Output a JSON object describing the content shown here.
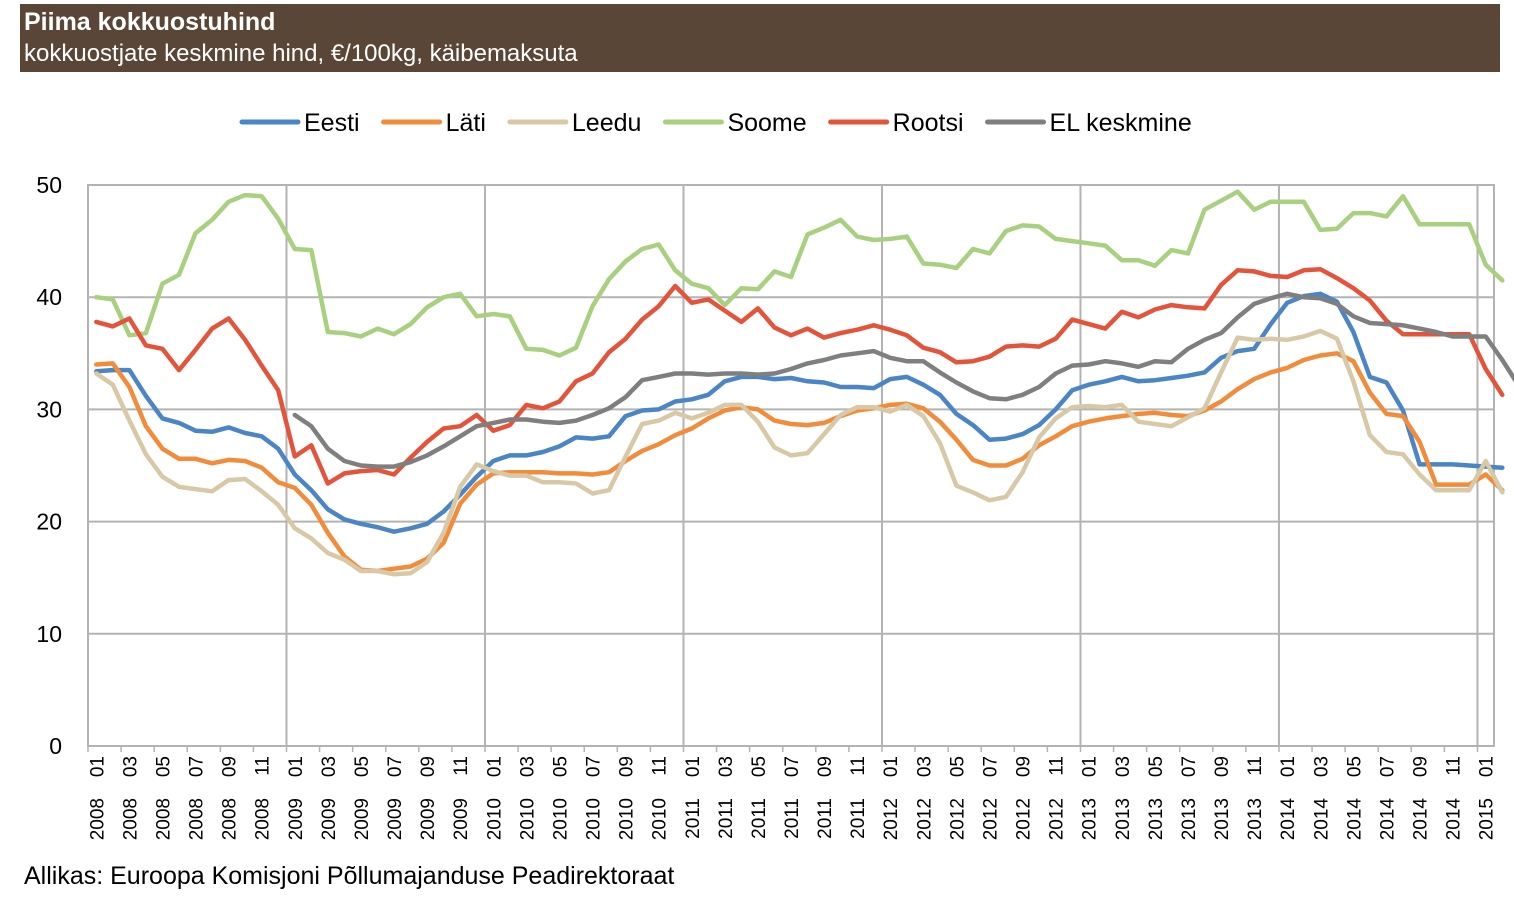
{
  "chart_data": {
    "type": "line",
    "title": "Piima kokkuostuhind",
    "subtitle": "kokkuostjate keskmine hind, €/100kg, käibemaksuta",
    "source": "Allikas: Euroopa Komisjoni Põllumajanduse Peadirektoraat",
    "ylim": [
      0,
      50
    ],
    "yticks": [
      "0",
      "10",
      "20",
      "30",
      "40",
      "50"
    ],
    "grid": true,
    "legend_position": "top",
    "x_month_labels": [
      "01",
      "03",
      "05",
      "07",
      "09",
      "11",
      "01",
      "03",
      "05",
      "07",
      "09",
      "11",
      "01",
      "03",
      "05",
      "07",
      "09",
      "11",
      "01",
      "03",
      "05",
      "07",
      "09",
      "11",
      "01",
      "03",
      "05",
      "07",
      "09",
      "11",
      "01",
      "03",
      "05",
      "07",
      "09",
      "11",
      "01",
      "03",
      "05",
      "07",
      "09",
      "11",
      "01"
    ],
    "x_year_labels": [
      "2008",
      "2008",
      "2008",
      "2008",
      "2008",
      "2008",
      "2009",
      "2009",
      "2009",
      "2009",
      "2009",
      "2009",
      "2010",
      "2010",
      "2010",
      "2010",
      "2010",
      "2010",
      "2011",
      "2011",
      "2011",
      "2011",
      "2011",
      "2011",
      "2012",
      "2012",
      "2012",
      "2012",
      "2012",
      "2012",
      "2013",
      "2013",
      "2013",
      "2013",
      "2013",
      "2013",
      "2014",
      "2014",
      "2014",
      "2014",
      "2014",
      "2014",
      "2015"
    ],
    "x_start": "2008-01",
    "x_end": "2015-01",
    "series": [
      {
        "name": "Eesti",
        "color": "#4a86c5",
        "start": "2008-01",
        "values": [
          33.4,
          33.5,
          33.5,
          31.2,
          29.2,
          28.8,
          28.1,
          28.0,
          28.4,
          27.9,
          27.6,
          26.5,
          24.2,
          22.8,
          21.1,
          20.2,
          19.8,
          19.5,
          19.1,
          19.4,
          19.8,
          20.9,
          22.4,
          24.0,
          25.4,
          25.9,
          25.9,
          26.2,
          26.7,
          27.5,
          27.4,
          27.6,
          29.4,
          29.9,
          30.0,
          30.7,
          30.9,
          31.3,
          32.5,
          32.9,
          32.9,
          32.7,
          32.8,
          32.5,
          32.4,
          32.0,
          32.0,
          31.9,
          32.7,
          32.9,
          32.2,
          31.3,
          29.6,
          28.6,
          27.3,
          27.4,
          27.8,
          28.6,
          30.0,
          31.7,
          32.2,
          32.5,
          32.9,
          32.5,
          32.6,
          32.8,
          33.0,
          33.3,
          34.6,
          35.2,
          35.4,
          37.6,
          39.5,
          40.1,
          40.3,
          39.6,
          36.9,
          32.9,
          32.4,
          29.9,
          25.1,
          25.1,
          25.1,
          25.0,
          24.9,
          24.8
        ]
      },
      {
        "name": "Läti",
        "color": "#f28c3b",
        "start": "2008-01",
        "values": [
          34.0,
          34.1,
          32.0,
          28.5,
          26.5,
          25.6,
          25.6,
          25.2,
          25.5,
          25.4,
          24.8,
          23.5,
          23.0,
          21.5,
          19.0,
          16.9,
          15.7,
          15.6,
          15.8,
          16.0,
          16.7,
          18.1,
          21.6,
          23.3,
          24.3,
          24.4,
          24.4,
          24.4,
          24.3,
          24.3,
          24.2,
          24.4,
          25.4,
          26.3,
          26.9,
          27.7,
          28.3,
          29.2,
          29.9,
          30.2,
          30.0,
          29.0,
          28.7,
          28.6,
          28.8,
          29.4,
          29.9,
          30.1,
          30.4,
          30.5,
          30.1,
          28.9,
          27.3,
          25.5,
          25.0,
          25.0,
          25.6,
          26.8,
          27.6,
          28.5,
          28.9,
          29.2,
          29.4,
          29.6,
          29.7,
          29.5,
          29.4,
          29.9,
          30.7,
          31.8,
          32.7,
          33.3,
          33.7,
          34.4,
          34.8,
          35.0,
          34.3,
          31.5,
          29.6,
          29.4,
          27.1,
          23.3,
          23.3,
          23.3,
          24.2,
          22.8
        ]
      },
      {
        "name": "Leedu",
        "color": "#d8c8a6",
        "start": "2008-01",
        "values": [
          33.2,
          32.2,
          29.0,
          26.0,
          24.0,
          23.1,
          22.9,
          22.7,
          23.7,
          23.8,
          22.7,
          21.5,
          19.4,
          18.5,
          17.2,
          16.6,
          15.6,
          15.6,
          15.3,
          15.4,
          16.4,
          19.0,
          23.1,
          25.1,
          24.5,
          24.1,
          24.1,
          23.5,
          23.5,
          23.4,
          22.5,
          22.8,
          25.8,
          28.7,
          29.0,
          29.7,
          29.2,
          29.7,
          30.4,
          30.4,
          28.9,
          26.6,
          25.9,
          26.1,
          27.8,
          29.5,
          30.2,
          30.2,
          29.8,
          30.4,
          29.4,
          27.0,
          23.2,
          22.6,
          21.9,
          22.2,
          24.4,
          27.5,
          29.2,
          30.2,
          30.3,
          30.2,
          30.4,
          28.9,
          28.7,
          28.5,
          29.3,
          30.1,
          33.3,
          36.4,
          36.2,
          36.3,
          36.2,
          36.5,
          37.0,
          36.3,
          32.5,
          27.7,
          26.2,
          26.0,
          24.2,
          22.8,
          22.8,
          22.8,
          25.4,
          22.6
        ]
      },
      {
        "name": "Soome",
        "color": "#a8d07e",
        "start": "2008-01",
        "values": [
          40.0,
          39.8,
          36.6,
          36.8,
          41.2,
          42.0,
          45.7,
          46.9,
          48.5,
          49.1,
          49.0,
          47.0,
          44.3,
          44.2,
          36.9,
          36.8,
          36.5,
          37.2,
          36.7,
          37.6,
          39.1,
          40.0,
          40.3,
          38.3,
          38.5,
          38.3,
          35.4,
          35.3,
          34.8,
          35.5,
          39.2,
          41.6,
          43.2,
          44.3,
          44.7,
          42.4,
          41.2,
          40.8,
          39.3,
          40.8,
          40.7,
          42.3,
          41.8,
          45.6,
          46.2,
          46.9,
          45.4,
          45.1,
          45.2,
          45.4,
          43.0,
          42.9,
          42.6,
          44.3,
          43.9,
          45.9,
          46.4,
          46.3,
          45.2,
          45.0,
          44.8,
          44.6,
          43.3,
          43.3,
          42.8,
          44.2,
          43.9,
          47.8,
          48.6,
          49.4,
          47.8,
          48.5,
          48.5,
          48.5,
          46.0,
          46.1,
          47.5,
          47.5,
          47.2,
          49.0,
          46.5,
          46.5,
          46.5,
          46.5,
          42.9,
          41.5
        ]
      },
      {
        "name": "Rootsi",
        "color": "#e4543a",
        "start": "2008-01",
        "values": [
          37.8,
          37.4,
          38.1,
          35.7,
          35.4,
          33.5,
          35.3,
          37.2,
          38.1,
          36.2,
          33.9,
          31.7,
          25.8,
          26.8,
          23.4,
          24.3,
          24.5,
          24.6,
          24.2,
          25.7,
          27.1,
          28.3,
          28.5,
          29.5,
          28.1,
          28.6,
          30.4,
          30.1,
          30.7,
          32.5,
          33.2,
          35.1,
          36.3,
          38.0,
          39.2,
          41.0,
          39.5,
          39.8,
          38.8,
          37.8,
          39.0,
          37.3,
          36.6,
          37.2,
          36.4,
          36.8,
          37.1,
          37.5,
          37.1,
          36.6,
          35.5,
          35.1,
          34.2,
          34.3,
          34.7,
          35.6,
          35.7,
          35.6,
          36.3,
          38.0,
          37.6,
          37.2,
          38.7,
          38.2,
          38.9,
          39.3,
          39.1,
          39.0,
          41.1,
          42.4,
          42.3,
          41.9,
          41.8,
          42.4,
          42.5,
          41.7,
          40.8,
          39.7,
          37.9,
          36.7,
          36.7,
          36.7,
          36.7,
          36.7,
          33.6,
          31.3
        ]
      },
      {
        "name": "EL keskmine",
        "color": "#7f7f7f",
        "start": "2009-01",
        "values": [
          29.5,
          28.5,
          26.5,
          25.4,
          25.0,
          24.9,
          24.9,
          25.3,
          25.9,
          26.7,
          27.6,
          28.5,
          28.8,
          29.1,
          29.1,
          28.9,
          28.8,
          29.0,
          29.5,
          30.1,
          31.1,
          32.6,
          32.9,
          33.2,
          33.2,
          33.1,
          33.2,
          33.2,
          33.1,
          33.2,
          33.6,
          34.1,
          34.4,
          34.8,
          35.0,
          35.2,
          34.6,
          34.3,
          34.3,
          33.3,
          32.4,
          31.6,
          31.0,
          30.9,
          31.3,
          32.0,
          33.2,
          33.9,
          34.0,
          34.3,
          34.1,
          33.8,
          34.3,
          34.2,
          35.4,
          36.2,
          36.8,
          38.2,
          39.4,
          39.9,
          40.3,
          40.0,
          39.9,
          39.4,
          38.3,
          37.7,
          37.6,
          37.5,
          37.2,
          36.9,
          36.5,
          36.5,
          36.5,
          34.4,
          32.1
        ]
      }
    ]
  }
}
